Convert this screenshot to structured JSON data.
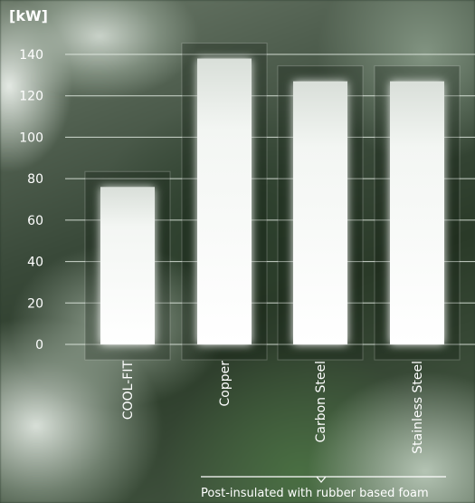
{
  "chart_data": {
    "type": "bar",
    "categories": [
      "COOL-FIT",
      "Copper",
      "Carbon Steel",
      "Stainless Steel"
    ],
    "values": [
      76,
      138,
      127,
      127
    ],
    "ylim": [
      0,
      140
    ],
    "yticks": [
      0,
      20,
      40,
      60,
      80,
      100,
      120,
      140
    ],
    "ylabel": "[kW]",
    "xlabel": "",
    "title": "",
    "grid": true,
    "bracket_label": "Post-insulated with rubber based foam"
  },
  "colors": {
    "bar": "#ffffff",
    "grid": "#e6efe6",
    "text": "#ffffff"
  }
}
